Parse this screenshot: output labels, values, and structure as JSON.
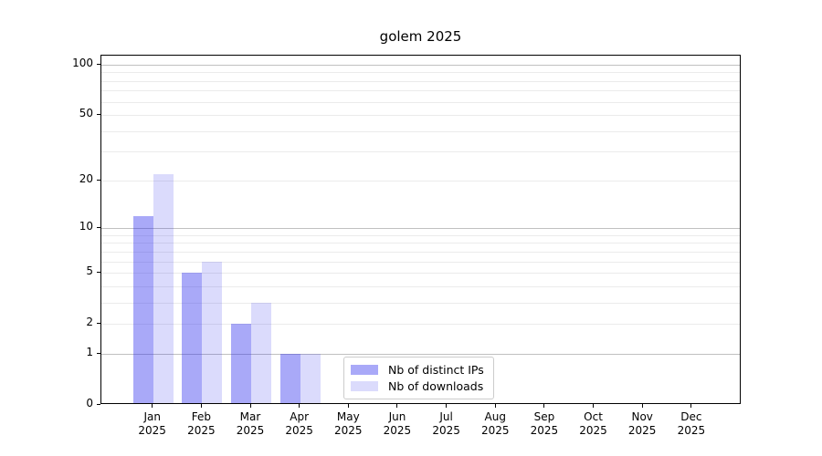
{
  "chart_data": {
    "type": "bar",
    "title": "golem 2025",
    "categories": [
      "Jan",
      "Feb",
      "Mar",
      "Apr",
      "May",
      "Jun",
      "Jul",
      "Aug",
      "Sep",
      "Oct",
      "Nov",
      "Dec"
    ],
    "year": "2025",
    "series": [
      {
        "name": "Nb of distinct IPs",
        "color": "rgba(40,40,238,0.40)",
        "solid_color": "#a9a9f8",
        "values": [
          12,
          5,
          2,
          1,
          0,
          0,
          0,
          0,
          0,
          0,
          0,
          0
        ]
      },
      {
        "name": "Nb of downloads",
        "color": "rgba(40,40,238,0.17)",
        "solid_color": "#dadafc",
        "values": [
          22,
          6,
          3,
          1,
          0,
          0,
          0,
          0,
          0,
          0,
          0,
          0
        ]
      }
    ],
    "xlabel": "",
    "ylabel": "",
    "yscale": "log1p",
    "ylim": [
      0,
      113
    ],
    "yticks": [
      0,
      1,
      2,
      5,
      10,
      20,
      50,
      100
    ],
    "grid": {
      "on": true,
      "major_values": [
        1,
        10,
        100
      ],
      "minor_values": [
        2,
        3,
        4,
        5,
        6,
        7,
        8,
        9,
        20,
        30,
        40,
        50,
        60,
        70,
        80,
        90
      ]
    },
    "legend": {
      "position": "lower center",
      "entries": [
        "Nb of distinct IPs",
        "Nb of downloads"
      ]
    },
    "colors": {
      "major_grid": "#c0c0c0",
      "minor_grid": "#ebebeb",
      "axis": "#000000",
      "background": "#ffffff"
    }
  }
}
